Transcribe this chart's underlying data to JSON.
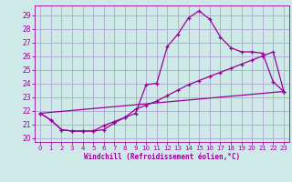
{
  "xlabel": "Windchill (Refroidissement éolien,°C)",
  "background_color": "#cfe8e8",
  "grid_color": "#aaaacc",
  "line_color": "#990099",
  "xlim": [
    -0.5,
    23.5
  ],
  "ylim": [
    19.7,
    29.7
  ],
  "yticks": [
    20,
    21,
    22,
    23,
    24,
    25,
    26,
    27,
    28,
    29
  ],
  "xticks": [
    0,
    1,
    2,
    3,
    4,
    5,
    6,
    7,
    8,
    9,
    10,
    11,
    12,
    13,
    14,
    15,
    16,
    17,
    18,
    19,
    20,
    21,
    22,
    23
  ],
  "series1_x": [
    0,
    1,
    2,
    3,
    4,
    5,
    6,
    7,
    8,
    9,
    10,
    11,
    12,
    13,
    14,
    15,
    16,
    17,
    18,
    19,
    20,
    21,
    22,
    23
  ],
  "series1_y": [
    21.8,
    21.3,
    20.6,
    20.5,
    20.5,
    20.5,
    20.6,
    21.1,
    21.5,
    21.8,
    23.9,
    24.0,
    26.7,
    27.6,
    28.8,
    29.3,
    28.7,
    27.4,
    26.6,
    26.3,
    26.3,
    26.2,
    24.1,
    23.4
  ],
  "series2_x": [
    0,
    1,
    2,
    3,
    4,
    5,
    6,
    7,
    8,
    9,
    10,
    11,
    12,
    13,
    14,
    15,
    16,
    17,
    18,
    19,
    20,
    21,
    22,
    23
  ],
  "series2_y": [
    21.8,
    21.3,
    20.6,
    20.5,
    20.5,
    20.5,
    20.9,
    21.2,
    21.5,
    22.1,
    22.4,
    22.7,
    23.1,
    23.5,
    23.9,
    24.2,
    24.5,
    24.8,
    25.1,
    25.4,
    25.7,
    26.0,
    26.3,
    23.4
  ],
  "series3_x": [
    0,
    23
  ],
  "series3_y": [
    21.8,
    23.4
  ]
}
